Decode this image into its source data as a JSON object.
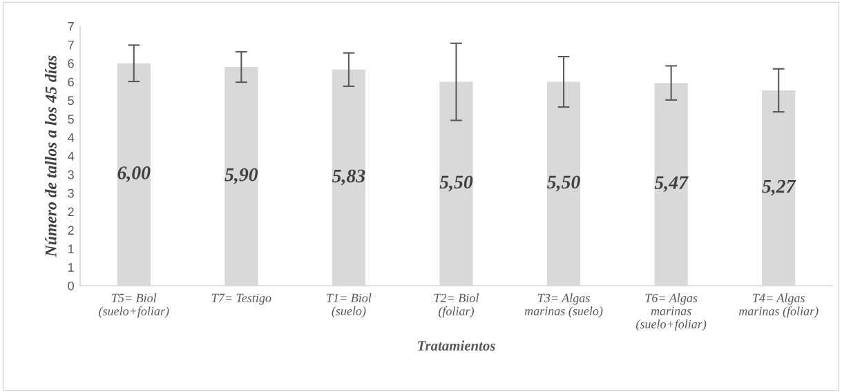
{
  "chart_data": {
    "type": "bar",
    "xlabel": "Tratamientos",
    "ylabel": "Número de tallos a los 45 días",
    "categories": [
      "T5= Biol\n(suelo+foliar)",
      "T7= Testigo",
      "T1= Biol\n(suelo)",
      "T2= Biol\n(foliar)",
      "T3= Algas\nmarinas (suelo)",
      "T6= Algas\nmarinas\n(suelo+foliar)",
      "T4= Algas\nmarinas (foliar)"
    ],
    "values": [
      6.0,
      5.9,
      5.83,
      5.5,
      5.5,
      5.47,
      5.27
    ],
    "value_labels": [
      "6,00",
      "5,90",
      "5,83",
      "5,50",
      "5,50",
      "5,47",
      "5,27"
    ],
    "errors": [
      0.49,
      0.41,
      0.45,
      1.04,
      0.68,
      0.46,
      0.58
    ],
    "color": "#d9d9d9",
    "ylim": [
      0,
      7
    ],
    "yticks": [
      0,
      {
        "value": 0.5,
        "label": "1"
      },
      1,
      {
        "value": 1.5,
        "label": "2"
      },
      2,
      {
        "value": 2.5,
        "label": "3"
      },
      3,
      {
        "value": 3.5,
        "label": "4"
      },
      4,
      {
        "value": 4.5,
        "label": "5"
      },
      5,
      {
        "value": 5.5,
        "label": "6"
      },
      6,
      {
        "value": 6.5,
        "label": "7"
      },
      7
    ],
    "grid": false,
    "legend": false
  }
}
